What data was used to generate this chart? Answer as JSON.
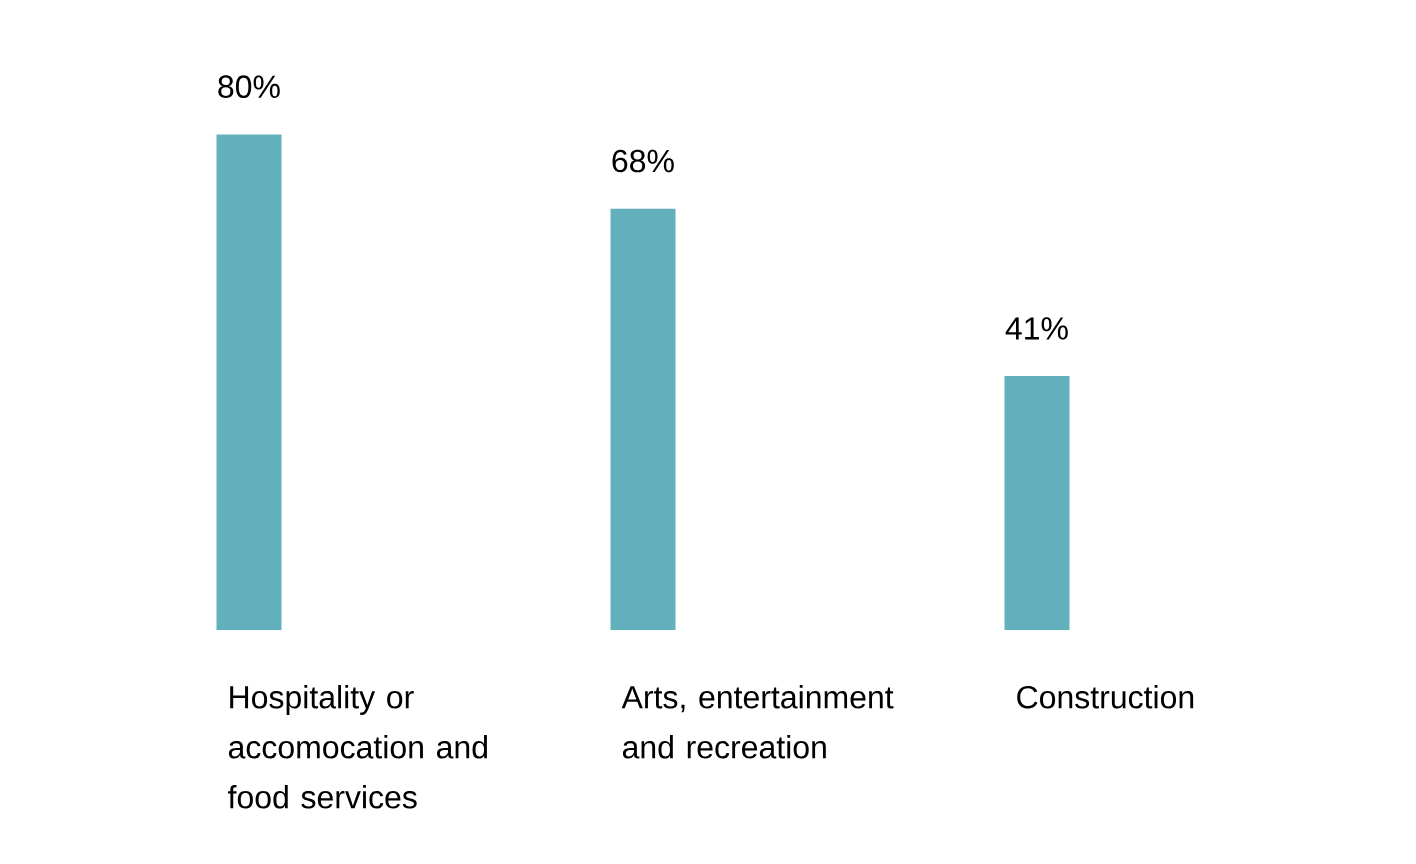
{
  "chart_data": {
    "type": "bar",
    "categories": [
      "Hospitality or accomocation and food services",
      "Arts, entertainment and recreation",
      "Construction"
    ],
    "values": [
      80,
      68,
      41
    ],
    "color": "#62b0bb",
    "value_labels": [
      "80%",
      "68%",
      "41%"
    ]
  }
}
